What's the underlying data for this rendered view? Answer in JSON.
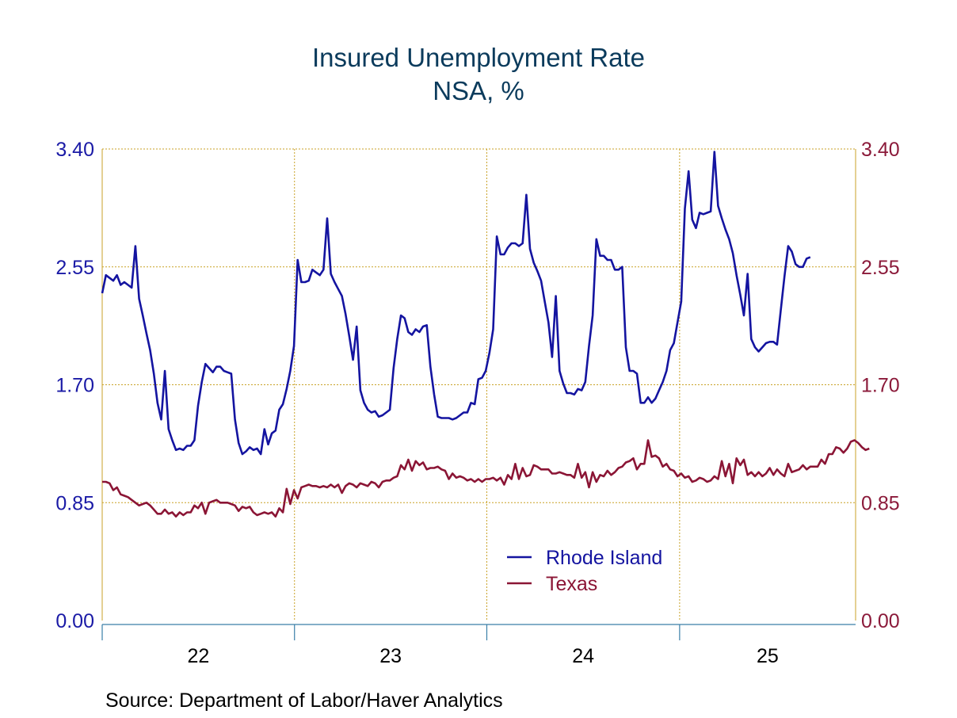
{
  "chart_data": {
    "type": "line",
    "title": "Insured Unemployment Rate",
    "subtitle": "NSA, %",
    "source": "Source:  Department of Labor/Haver Analytics",
    "y_left": {
      "ticks": [
        "3.40",
        "2.55",
        "1.70",
        "0.85",
        "0.00"
      ],
      "ylim": [
        0,
        3.4
      ],
      "color": "#1a1aa6"
    },
    "y_right": {
      "ticks": [
        "3.40",
        "2.55",
        "1.70",
        "0.85",
        "0.00"
      ],
      "ylim": [
        0,
        3.4
      ],
      "color": "#8b1a3a"
    },
    "x_axis": {
      "labels": [
        "22",
        "23",
        "24",
        "25"
      ],
      "start": "2022-01",
      "end": "2025-12",
      "grid_at": [
        "2023-01",
        "2024-01",
        "2025-01"
      ]
    },
    "grid": true,
    "legend": {
      "position": "bottom-center"
    },
    "series": [
      {
        "name": "Rhode Island",
        "color": "#1414a0",
        "frequency": "weekly",
        "start": "2022-01-01",
        "values": [
          2.36,
          2.49,
          2.47,
          2.45,
          2.49,
          2.42,
          2.44,
          2.42,
          2.4,
          2.7,
          2.32,
          2.2,
          2.07,
          1.95,
          1.78,
          1.57,
          1.45,
          1.8,
          1.38,
          1.3,
          1.23,
          1.24,
          1.23,
          1.26,
          1.26,
          1.3,
          1.55,
          1.72,
          1.85,
          1.82,
          1.79,
          1.83,
          1.83,
          1.8,
          1.79,
          1.78,
          1.45,
          1.28,
          1.2,
          1.22,
          1.25,
          1.23,
          1.24,
          1.2,
          1.38,
          1.27,
          1.35,
          1.37,
          1.52,
          1.56,
          1.67,
          1.8,
          1.98,
          2.6,
          2.44,
          2.44,
          2.45,
          2.53,
          2.51,
          2.49,
          2.53,
          2.9,
          2.5,
          2.44,
          2.39,
          2.34,
          2.21,
          2.05,
          1.88,
          2.12,
          1.66,
          1.57,
          1.52,
          1.5,
          1.51,
          1.47,
          1.48,
          1.5,
          1.52,
          1.82,
          2.03,
          2.2,
          2.18,
          2.08,
          2.06,
          2.1,
          2.08,
          2.12,
          2.13,
          1.83,
          1.63,
          1.47,
          1.46,
          1.46,
          1.46,
          1.45,
          1.46,
          1.48,
          1.5,
          1.5,
          1.57,
          1.56,
          1.74,
          1.75,
          1.8,
          1.93,
          2.1,
          2.77,
          2.64,
          2.64,
          2.69,
          2.72,
          2.72,
          2.7,
          2.72,
          3.07,
          2.68,
          2.58,
          2.52,
          2.45,
          2.3,
          2.15,
          1.9,
          2.34,
          1.8,
          1.71,
          1.64,
          1.64,
          1.63,
          1.67,
          1.66,
          1.72,
          1.98,
          2.2,
          2.75,
          2.63,
          2.63,
          2.6,
          2.6,
          2.53,
          2.53,
          2.55,
          1.97,
          1.8,
          1.8,
          1.78,
          1.57,
          1.57,
          1.61,
          1.57,
          1.6,
          1.66,
          1.72,
          1.8,
          1.95,
          2.0,
          2.15,
          2.3,
          2.97,
          3.24,
          2.89,
          2.83,
          2.94,
          2.93,
          2.94,
          2.95,
          3.38,
          2.99,
          2.9,
          2.82,
          2.75,
          2.65,
          2.49,
          2.35,
          2.2,
          2.5,
          2.03,
          1.97,
          1.94,
          1.97,
          2.0,
          2.01,
          2.01,
          1.99,
          2.24,
          2.48,
          2.7,
          2.66,
          2.57,
          2.55,
          2.55,
          2.61,
          2.62
        ]
      },
      {
        "name": "Texas",
        "color": "#8b1535",
        "frequency": "weekly",
        "start": "2022-01-01",
        "values": [
          1.0,
          1.0,
          0.99,
          0.94,
          0.96,
          0.91,
          0.9,
          0.89,
          0.87,
          0.85,
          0.83,
          0.84,
          0.85,
          0.83,
          0.8,
          0.77,
          0.77,
          0.8,
          0.77,
          0.78,
          0.75,
          0.78,
          0.76,
          0.78,
          0.78,
          0.83,
          0.81,
          0.85,
          0.77,
          0.85,
          0.86,
          0.87,
          0.85,
          0.85,
          0.85,
          0.84,
          0.83,
          0.79,
          0.82,
          0.81,
          0.82,
          0.78,
          0.76,
          0.77,
          0.78,
          0.77,
          0.78,
          0.75,
          0.81,
          0.78,
          0.95,
          0.84,
          0.94,
          0.88,
          0.96,
          0.97,
          0.98,
          0.97,
          0.97,
          0.96,
          0.97,
          0.96,
          0.98,
          0.96,
          0.98,
          0.92,
          0.97,
          0.99,
          0.98,
          0.96,
          0.99,
          0.98,
          0.97,
          1.0,
          0.99,
          0.96,
          1.0,
          1.01,
          1.01,
          1.03,
          1.04,
          1.12,
          1.09,
          1.16,
          1.08,
          1.15,
          1.12,
          1.14,
          1.09,
          1.1,
          1.1,
          1.11,
          1.09,
          1.08,
          1.02,
          1.06,
          1.03,
          1.04,
          1.03,
          1.01,
          1.02,
          1.0,
          1.02,
          1.0,
          1.02,
          1.02,
          1.03,
          1.01,
          1.03,
          0.98,
          1.05,
          1.02,
          1.13,
          1.02,
          1.1,
          1.04,
          1.05,
          1.12,
          1.11,
          1.09,
          1.09,
          1.09,
          1.06,
          1.06,
          1.07,
          1.06,
          1.05,
          1.05,
          1.03,
          1.13,
          1.03,
          1.07,
          0.96,
          1.07,
          1.0,
          1.05,
          1.04,
          1.08,
          1.05,
          1.07,
          1.1,
          1.11,
          1.14,
          1.15,
          1.17,
          1.09,
          1.13,
          1.13,
          1.3,
          1.18,
          1.19,
          1.17,
          1.11,
          1.13,
          1.09,
          1.08,
          1.04,
          1.06,
          1.03,
          1.04,
          1.0,
          1.01,
          1.03,
          1.02,
          1.0,
          1.01,
          1.04,
          1.02,
          1.15,
          1.04,
          1.13,
          0.99,
          1.17,
          1.12,
          1.16,
          1.05,
          1.07,
          1.04,
          1.07,
          1.04,
          1.06,
          1.1,
          1.05,
          1.09,
          1.06,
          1.04,
          1.13,
          1.07,
          1.08,
          1.09,
          1.12,
          1.09,
          1.11,
          1.11,
          1.11,
          1.16,
          1.13,
          1.2,
          1.2,
          1.25,
          1.24,
          1.21,
          1.24,
          1.29,
          1.3,
          1.28,
          1.25,
          1.23,
          1.24
        ]
      }
    ]
  }
}
